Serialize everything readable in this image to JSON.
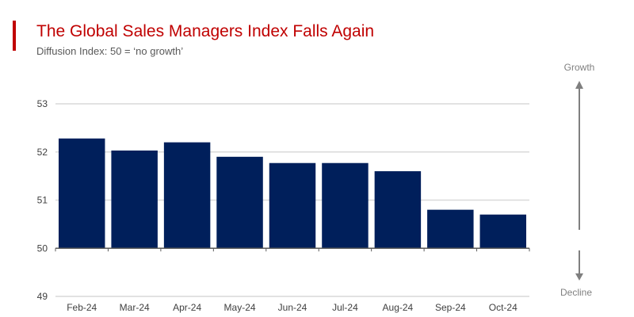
{
  "colors": {
    "bar": "#001f5b",
    "accent": "#c00000",
    "grid": "#d9d9d9",
    "axis": "#595959",
    "arrow": "#7f7f7f"
  },
  "chart_data": {
    "type": "bar",
    "title": "The Global Sales Managers Index Falls Again",
    "subtitle": "Diffusion Index: 50 = ‘no growth’",
    "categories": [
      "Feb-24",
      "Mar-24",
      "Apr-24",
      "May-24",
      "Jun-24",
      "Jul-24",
      "Aug-24",
      "Sep-24",
      "Oct-24"
    ],
    "values": [
      52.28,
      52.03,
      52.2,
      51.9,
      51.77,
      51.77,
      51.6,
      50.8,
      50.7
    ],
    "ylim": [
      49,
      53
    ],
    "yticks": [
      "49",
      "50",
      "51",
      "52",
      "53"
    ],
    "baseline": 50,
    "grid": true,
    "annotations": {
      "up": "Growth",
      "down": "Decline"
    }
  }
}
